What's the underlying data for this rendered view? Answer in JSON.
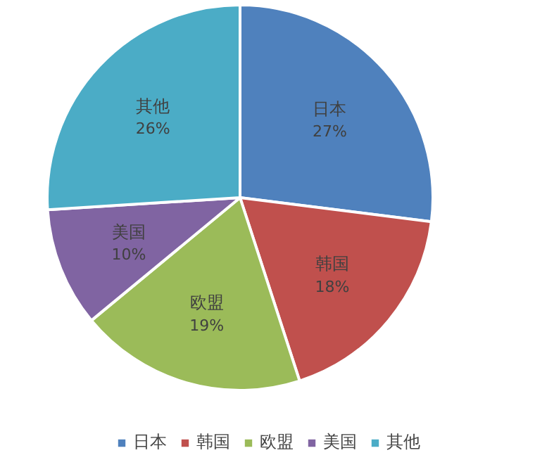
{
  "chart_data": {
    "type": "pie",
    "categories": [
      "日本",
      "韩国",
      "欧盟",
      "美国",
      "其他"
    ],
    "values": [
      27,
      18,
      19,
      10,
      26
    ],
    "value_labels": [
      "27%",
      "18%",
      "19%",
      "10%",
      "26%"
    ],
    "colors": [
      "#4f81bd",
      "#c0504d",
      "#9bbb59",
      "#8064a2",
      "#4bacc6"
    ],
    "legend": "bottom"
  }
}
